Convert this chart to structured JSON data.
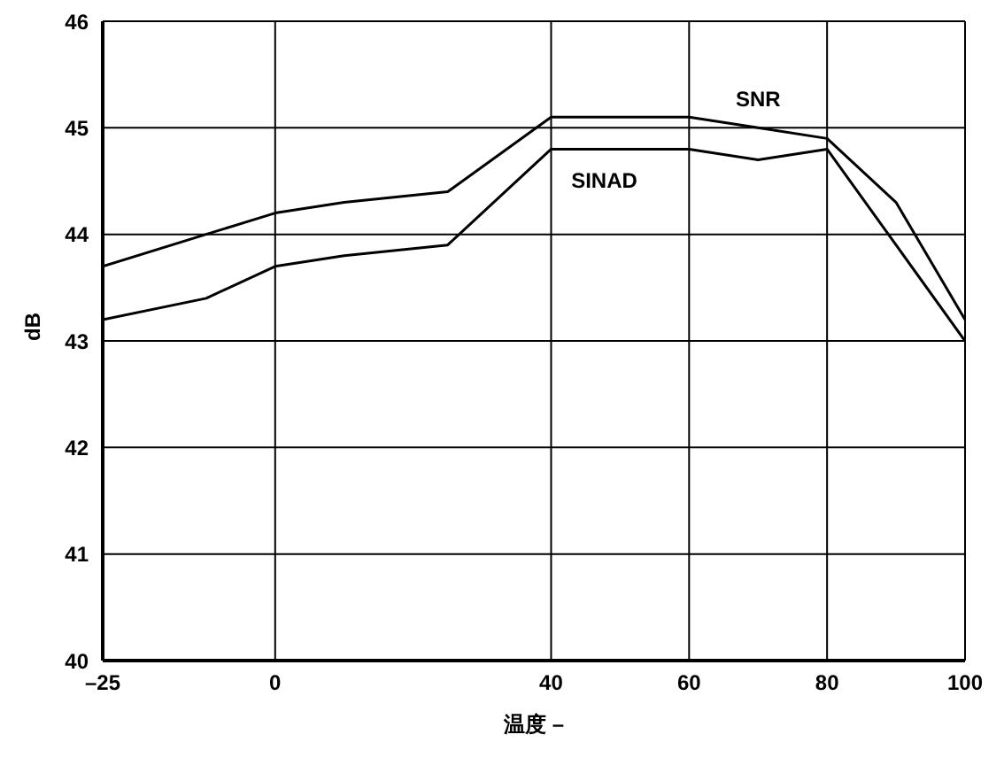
{
  "chart_data": {
    "type": "line",
    "xlabel": "温度 –",
    "ylabel": "dB",
    "x": [
      -25,
      -10,
      0,
      10,
      25,
      40,
      60,
      70,
      80,
      90,
      100
    ],
    "series": [
      {
        "name": "SNR",
        "color": "#000000",
        "values": [
          43.7,
          44.0,
          44.2,
          44.3,
          44.4,
          45.1,
          45.1,
          45.0,
          44.9,
          44.3,
          43.2
        ]
      },
      {
        "name": "SINAD",
        "color": "#000000",
        "values": [
          43.2,
          43.4,
          43.7,
          43.8,
          43.9,
          44.8,
          44.8,
          44.7,
          44.8,
          43.9,
          43.0
        ]
      }
    ],
    "xlim": [
      -25,
      100
    ],
    "xticks": [
      {
        "value": -25,
        "label": "–25"
      },
      0,
      40,
      60,
      80,
      100
    ],
    "ylim": [
      40,
      46
    ],
    "yticks": [
      40,
      41,
      42,
      43,
      44,
      45,
      46
    ],
    "grid": true,
    "legend": false,
    "marker": "none",
    "line_style": "solid"
  }
}
